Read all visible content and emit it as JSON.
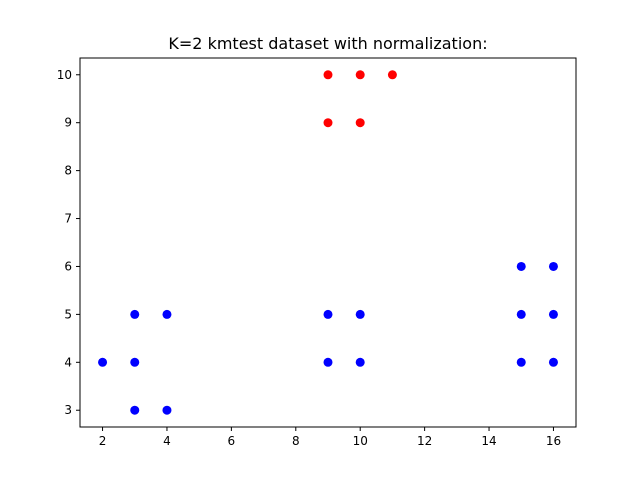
{
  "chart_data": {
    "type": "scatter",
    "title": "K=2 kmtest dataset with normalization:",
    "xlabel": "",
    "ylabel": "",
    "xlim": [
      1.3,
      16.7
    ],
    "ylim": [
      2.65,
      10.35
    ],
    "xticks": [
      2,
      4,
      6,
      8,
      10,
      12,
      14,
      16
    ],
    "yticks": [
      3,
      4,
      5,
      6,
      7,
      8,
      9,
      10
    ],
    "grid": false,
    "series": [
      {
        "color": "#ff0000",
        "points": [
          [
            9,
            10
          ],
          [
            10,
            10
          ],
          [
            11,
            10
          ],
          [
            9,
            9
          ],
          [
            10,
            9
          ]
        ]
      },
      {
        "color": "#0000ff",
        "points": [
          [
            2,
            4
          ],
          [
            3,
            5
          ],
          [
            3,
            4
          ],
          [
            3,
            3
          ],
          [
            4,
            5
          ],
          [
            4,
            3
          ],
          [
            9,
            5
          ],
          [
            9,
            4
          ],
          [
            10,
            5
          ],
          [
            10,
            4
          ],
          [
            15,
            6
          ],
          [
            15,
            5
          ],
          [
            15,
            4
          ],
          [
            16,
            6
          ],
          [
            16,
            5
          ],
          [
            16,
            4
          ]
        ]
      }
    ]
  }
}
